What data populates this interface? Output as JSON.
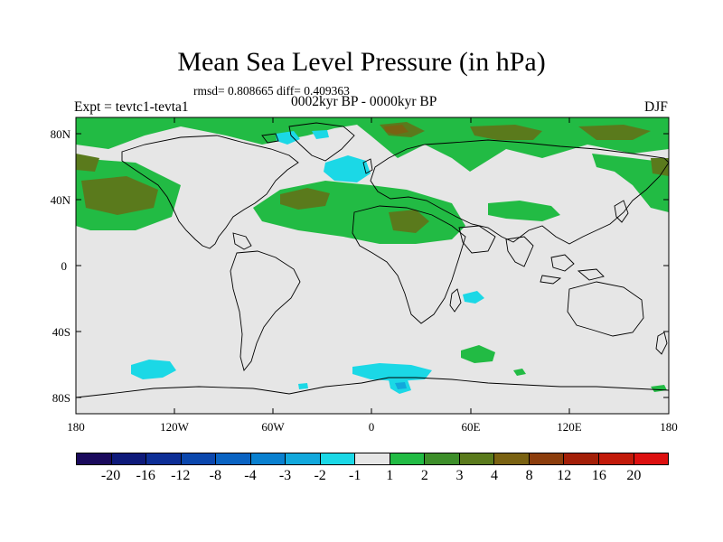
{
  "title": "Mean Sea Level Pressure (in hPa)",
  "stats": "rmsd= 0.808665 diff= 0.409363",
  "experiment": "Expt = tevtc1-tevta1",
  "period": "0002kyr BP - 0000kyr BP",
  "season": "DJF",
  "lat_labels": [
    "80N",
    "40N",
    "0",
    "40S",
    "80S"
  ],
  "lon_labels": [
    "180",
    "120W",
    "60W",
    "0",
    "60E",
    "120E",
    "180"
  ],
  "colorbar": {
    "labels": [
      "-20",
      "-16",
      "-12",
      "-8",
      "-4",
      "-3",
      "-2",
      "-1",
      "1",
      "2",
      "3",
      "4",
      "8",
      "12",
      "16",
      "20"
    ],
    "colors": [
      "#1a0a5c",
      "#0e1a7a",
      "#0d2e96",
      "#0b47ad",
      "#0a63c2",
      "#0a80cf",
      "#12a8dc",
      "#1bd8e6",
      "#e6e6e6",
      "#22bb44",
      "#3d8e2a",
      "#5a7a1c",
      "#7a6212",
      "#8c3d0c",
      "#a31f08",
      "#c21a0a",
      "#dd1010"
    ]
  },
  "colors": {
    "map_background": "#e6e6e6",
    "land_outline": "#000000"
  }
}
